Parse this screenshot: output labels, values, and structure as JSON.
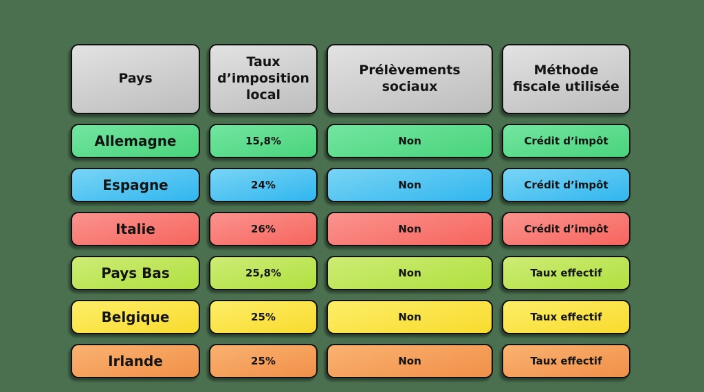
{
  "page": {
    "background": "#4a704f",
    "text_color": "#141414"
  },
  "table": {
    "header_colors": {
      "top": "#e2e2e2",
      "bottom": "#bdbdbd"
    },
    "headers": [
      {
        "label": "Pays"
      },
      {
        "label": "Taux d’imposition local"
      },
      {
        "label": "Prélèvements sociaux"
      },
      {
        "label": "Méthode fiscale utilisée"
      }
    ],
    "rows": [
      {
        "country": "Allemagne",
        "rate": "15,8%",
        "social": "Non",
        "method": "Crédit d’impôt",
        "colors": {
          "top": "#73e5a0",
          "bottom": "#49d47c"
        }
      },
      {
        "country": "Espagne",
        "rate": "24%",
        "social": "Non",
        "method": "Crédit d’impôt",
        "colors": {
          "top": "#79d4f4",
          "bottom": "#30b6ef"
        }
      },
      {
        "country": "Italie",
        "rate": "26%",
        "social": "Non",
        "method": "Crédit d’impôt",
        "colors": {
          "top": "#fb938e",
          "bottom": "#f6655e"
        }
      },
      {
        "country": "Pays Bas",
        "rate": "25,8%",
        "social": "Non",
        "method": "Taux effectif",
        "colors": {
          "top": "#cdec75",
          "bottom": "#b0e03f"
        }
      },
      {
        "country": "Belgique",
        "rate": "25%",
        "social": "Non",
        "method": "Taux effectif",
        "colors": {
          "top": "#fdee67",
          "bottom": "#f8db2e"
        }
      },
      {
        "country": "Irlande",
        "rate": "25%",
        "social": "Non",
        "method": "Taux effectif",
        "colors": {
          "top": "#fab271",
          "bottom": "#f09048"
        }
      }
    ]
  },
  "chart_data": {
    "type": "table",
    "columns": [
      "Pays",
      "Taux d’imposition local",
      "Prélèvements sociaux",
      "Méthode fiscale utilisée"
    ],
    "rows": [
      [
        "Allemagne",
        "15,8%",
        "Non",
        "Crédit d’impôt"
      ],
      [
        "Espagne",
        "24%",
        "Non",
        "Crédit d’impôt"
      ],
      [
        "Italie",
        "26%",
        "Non",
        "Crédit d’impôt"
      ],
      [
        "Pays Bas",
        "25,8%",
        "Non",
        "Taux effectif"
      ],
      [
        "Belgique",
        "25%",
        "Non",
        "Taux effectif"
      ],
      [
        "Irlande",
        "25%",
        "Non",
        "Taux effectif"
      ]
    ],
    "row_colors": [
      "#49d47c",
      "#30b6ef",
      "#f6655e",
      "#b0e03f",
      "#f8db2e",
      "#f09048"
    ],
    "layout": {
      "header_background": "#bdbdbd",
      "page_background": "#4a704f",
      "grid": "rounded-cells"
    }
  }
}
